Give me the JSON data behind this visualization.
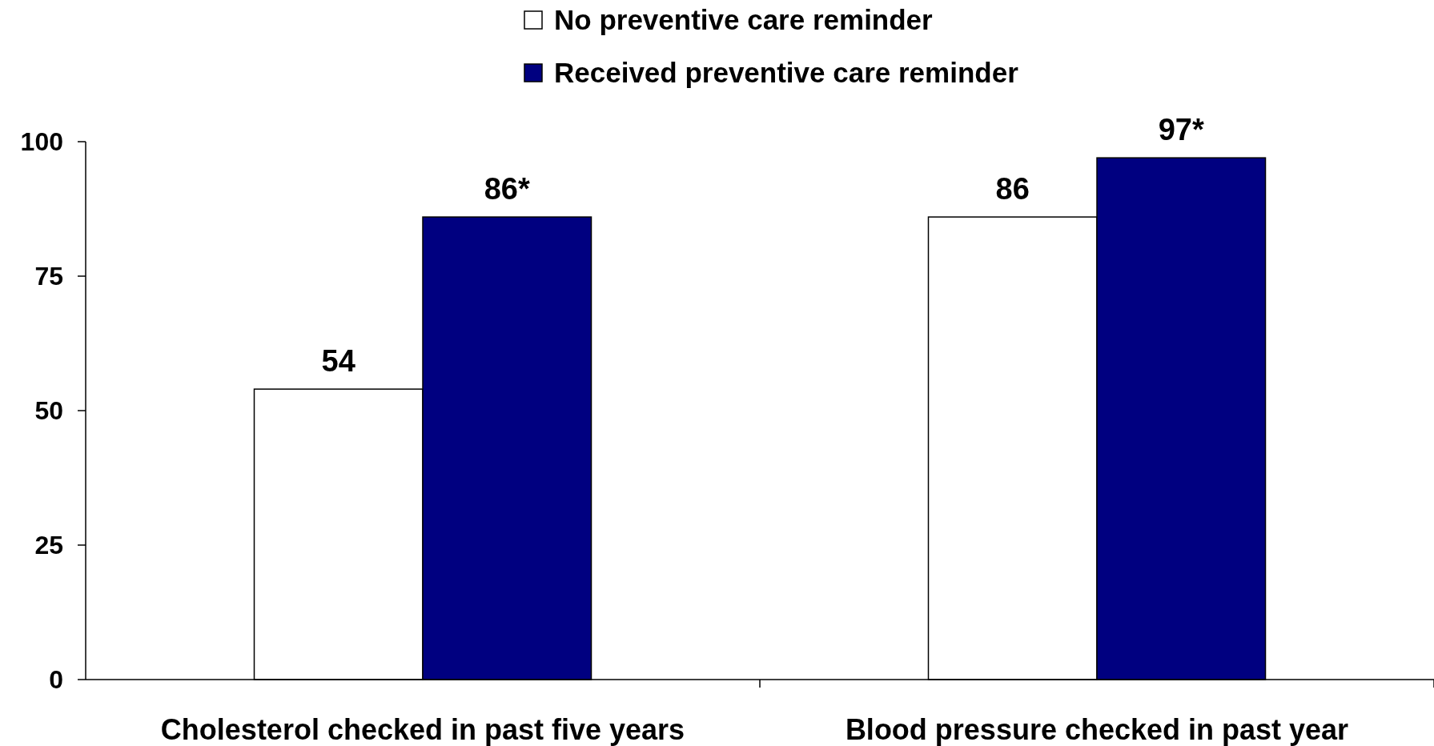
{
  "chart_data": {
    "type": "bar",
    "categories": [
      "Cholesterol checked in past five years",
      "Blood pressure checked in past year"
    ],
    "series": [
      {
        "name": "No preventive care reminder",
        "color": "#ffffff",
        "values": [
          54,
          86
        ],
        "value_labels": [
          "54",
          "86"
        ]
      },
      {
        "name": "Received preventive care  reminder",
        "color": "#000080",
        "values": [
          86,
          97
        ],
        "value_labels": [
          "86*",
          "97*"
        ]
      }
    ],
    "ylim": [
      0,
      100
    ],
    "yticks": [
      0,
      25,
      50,
      75,
      100
    ],
    "grid": false,
    "legend": "top"
  }
}
